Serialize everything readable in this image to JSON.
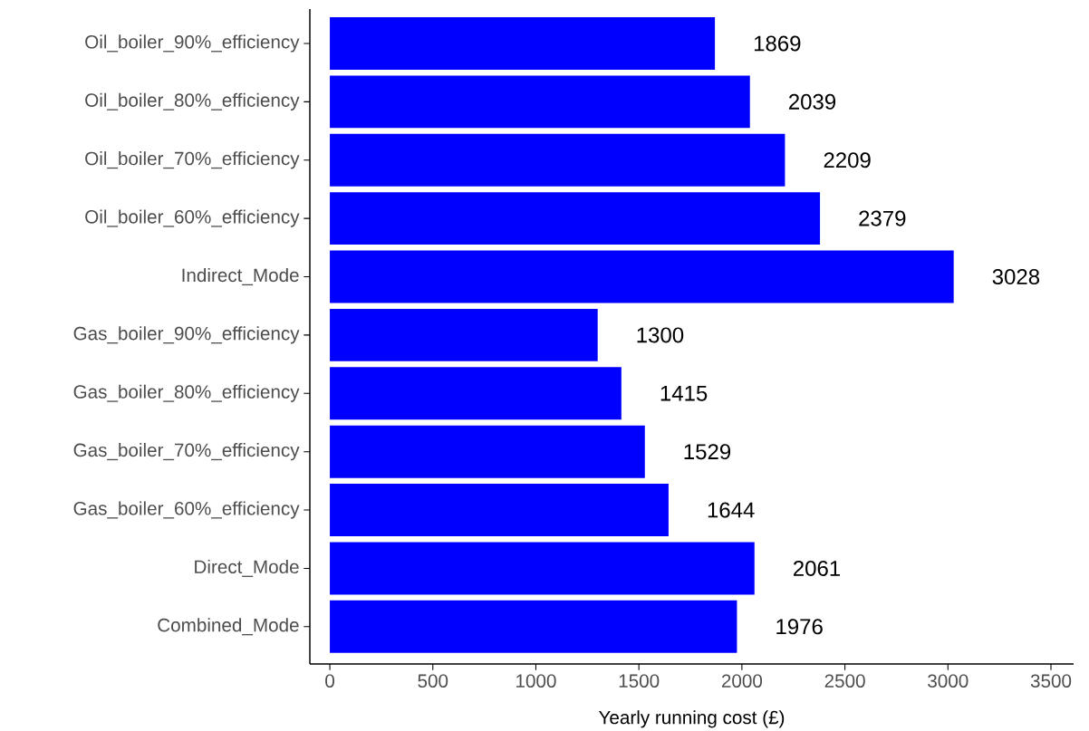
{
  "chart_data": {
    "type": "bar",
    "orientation": "horizontal",
    "xlabel": "Yearly running cost (£)",
    "categories": [
      "Oil_boiler_90%_efficiency",
      "Oil_boiler_80%_efficiency",
      "Oil_boiler_70%_efficiency",
      "Oil_boiler_60%_efficiency",
      "Indirect_Mode",
      "Gas_boiler_90%_efficiency",
      "Gas_boiler_80%_efficiency",
      "Gas_boiler_70%_efficiency",
      "Gas_boiler_60%_efficiency",
      "Direct_Mode",
      "Combined_Mode"
    ],
    "values": [
      1869,
      2039,
      2209,
      2379,
      3028,
      1300,
      1415,
      1529,
      1644,
      2061,
      1976
    ],
    "color": "#0000ff",
    "data_labels": true,
    "grid": false,
    "xlim": [
      -97,
      3610
    ],
    "xticks": [
      0,
      500,
      1000,
      1500,
      2000,
      2500,
      3000,
      3500
    ]
  }
}
